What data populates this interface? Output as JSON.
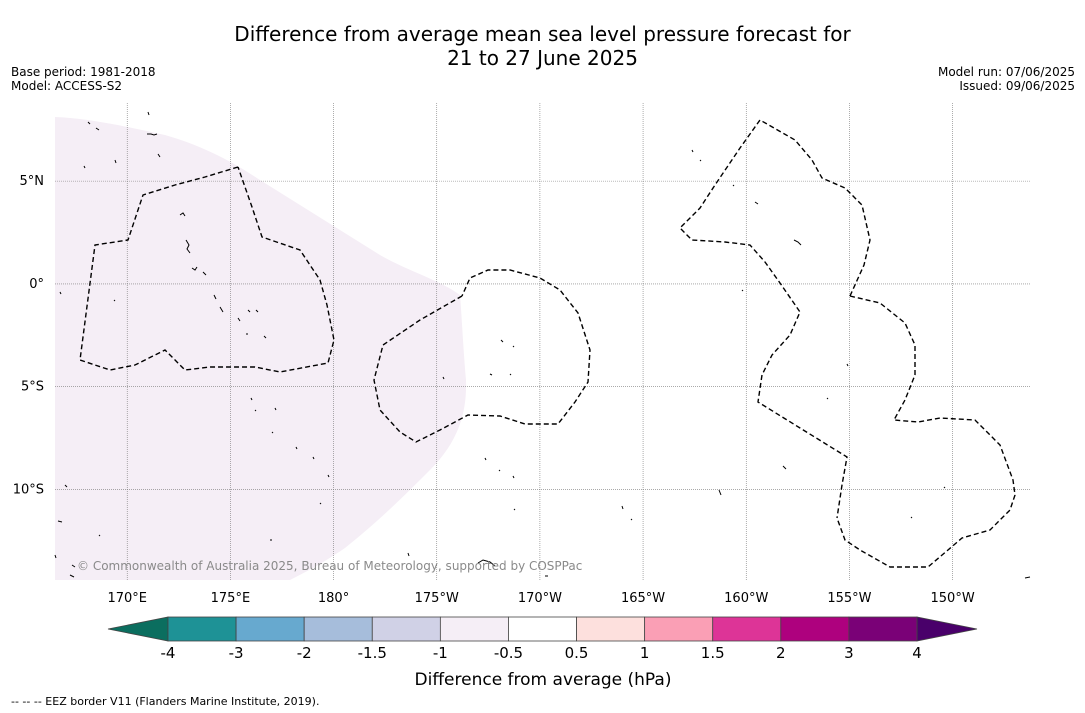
{
  "title": {
    "line1": "Difference from average mean sea level pressure forecast for",
    "line2": "21 to 27 June 2025"
  },
  "meta": {
    "base_period": "Base period: 1981-2018",
    "model": "Model: ACCESS-S2",
    "model_run": "Model run: 07/06/2025",
    "issued": "Issued: 09/06/2025"
  },
  "map": {
    "lat_labels": [
      {
        "lat": 5,
        "label": "5°N"
      },
      {
        "lat": 0,
        "label": "0°"
      },
      {
        "lat": -5,
        "label": "5°S"
      },
      {
        "lat": -10,
        "label": "10°S"
      }
    ],
    "lon_labels": [
      {
        "lon": 170,
        "label": "170°E"
      },
      {
        "lon": 175,
        "label": "175°E"
      },
      {
        "lon": 180,
        "label": "180°"
      },
      {
        "lon": 185,
        "label": "175°W"
      },
      {
        "lon": 190,
        "label": "170°W"
      },
      {
        "lon": 195,
        "label": "165°W"
      },
      {
        "lon": 200,
        "label": "160°W"
      },
      {
        "lon": 205,
        "label": "155°W"
      },
      {
        "lon": 210,
        "label": "150°W"
      }
    ],
    "lon_range": [
      166.5,
      213.8
    ],
    "lat_range": [
      -14.4,
      8.8
    ],
    "anomaly_region_color": "#f5eef6",
    "copyright": "© Commonwealth of Australia 2025, Bureau of Meteorology, supported by COSPPac"
  },
  "colorbar": {
    "ticks": [
      "-4",
      "-3",
      "-2",
      "-1.5",
      "-1",
      "-0.5",
      "0.5",
      "1",
      "1.5",
      "2",
      "3",
      "4"
    ],
    "colors": [
      "#1e9296",
      "#67a9cf",
      "#a6bddb",
      "#d0d1e6",
      "#f5eef6",
      "#ffffff",
      "#fde0dd",
      "#fa9fb5",
      "#dd3497",
      "#ae017e",
      "#7a0177"
    ],
    "under_color": "#0b6e5f",
    "over_color": "#49006a",
    "label": "Difference from average (hPa)"
  },
  "footnote": "-- -- -- EEZ border V11 (Flanders Marine Institute, 2019)."
}
